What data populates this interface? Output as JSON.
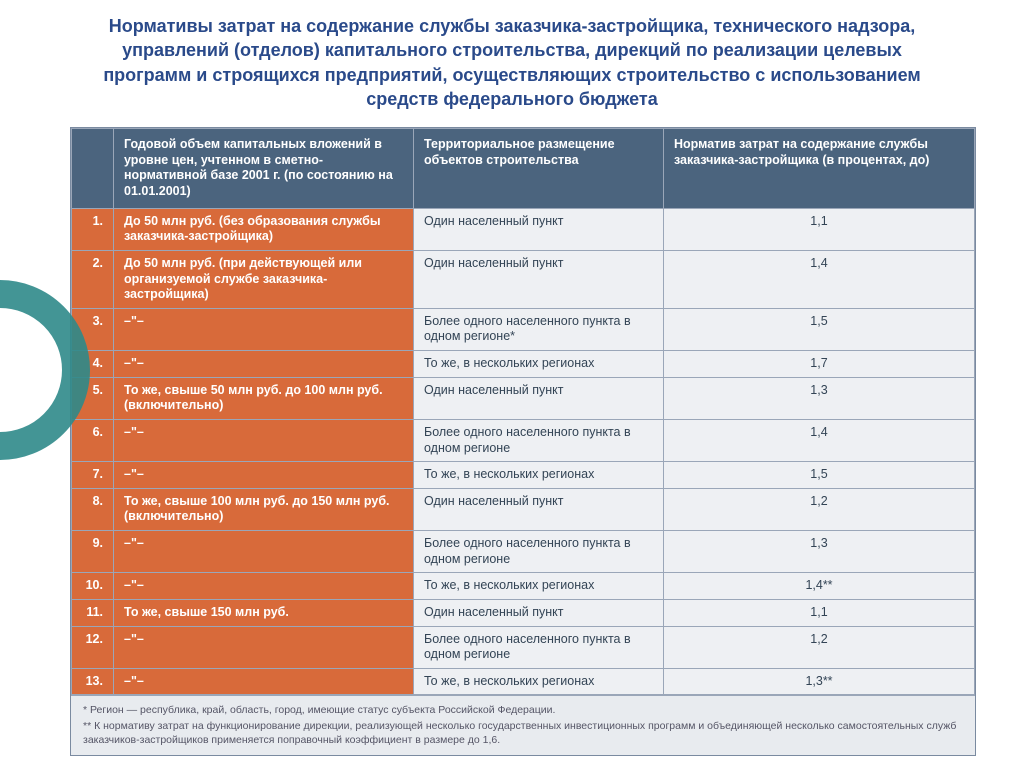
{
  "title": "Нормативы затрат на содержание службы заказчика-застройщика, технического надзора, управлений (отделов) капитального строительства, дирекций по реализации целевых программ и строящихся предприятий, осуществляющих строительство с использованием средств федерального бюджета",
  "colors": {
    "title_color": "#2a4a8a",
    "header_bg": "#4b647e",
    "header_fg": "#ffffff",
    "orange_bg": "#d86a3a",
    "orange_fg": "#ffffff",
    "body_bg": "#eef0f3",
    "body_fg": "#334455",
    "border": "#9aa6b8",
    "ring": "#2f8a8a"
  },
  "columns": [
    "",
    "Годовой объем капитальных вложений в уровне цен, учтенном в сметно-нормативной базе 2001 г. (по состоянию на 01.01.2001)",
    "Территориальное размещение объектов строительства",
    "Норматив затрат на содержание службы заказчика-застройщика (в процентах, до)"
  ],
  "rows": [
    {
      "num": "1.",
      "inv": "До 50 млн руб. (без образования службы заказчика-застройщика)",
      "loc": "Один населенный пункт",
      "norm": "1,1"
    },
    {
      "num": "2.",
      "inv": "До 50 млн руб. (при действующей или организуемой службе заказчика-застройщика)",
      "loc": "Один населенный пункт",
      "norm": "1,4"
    },
    {
      "num": "3.",
      "inv": "–\"–",
      "loc": "Более одного населенного пункта в одном регионе*",
      "norm": "1,5"
    },
    {
      "num": "4.",
      "inv": "–\"–",
      "loc": "То же, в нескольких регионах",
      "norm": "1,7"
    },
    {
      "num": "5.",
      "inv": "То же, свыше 50 млн руб. до 100 млн руб. (включительно)",
      "loc": "Один населенный пункт",
      "norm": "1,3"
    },
    {
      "num": "6.",
      "inv": "–\"–",
      "loc": "Более одного населенного пункта в одном регионе",
      "norm": "1,4"
    },
    {
      "num": "7.",
      "inv": "–\"–",
      "loc": "То же, в нескольких регионах",
      "norm": "1,5"
    },
    {
      "num": "8.",
      "inv": "То же, свыше 100 млн руб. до 150 млн руб. (включительно)",
      "loc": "Один населенный пункт",
      "norm": "1,2"
    },
    {
      "num": "9.",
      "inv": "–\"–",
      "loc": "Более одного населенного пункта в одном регионе",
      "norm": "1,3"
    },
    {
      "num": "10.",
      "inv": "–\"–",
      "loc": "То же, в нескольких регионах",
      "norm": "1,4**"
    },
    {
      "num": "11.",
      "inv": "То же, свыше 150 млн руб.",
      "loc": "Один населенный пункт",
      "norm": "1,1"
    },
    {
      "num": "12.",
      "inv": "–\"–",
      "loc": "Более одного населенного пункта в одном регионе",
      "norm": "1,2"
    },
    {
      "num": "13.",
      "inv": "–\"–",
      "loc": "То же, в нескольких регионах",
      "norm": "1,3**"
    }
  ],
  "footnotes": [
    "* Регион — республика, край, область, город, имеющие статус субъекта Российской Федерации.",
    "** К нормативу затрат на функционирование дирекции, реализующей несколько государственных инвестиционных программ и объединяющей несколько самостоятельных служб заказчиков-застройщиков применяется поправочный коэффициент в размере до 1,6."
  ]
}
